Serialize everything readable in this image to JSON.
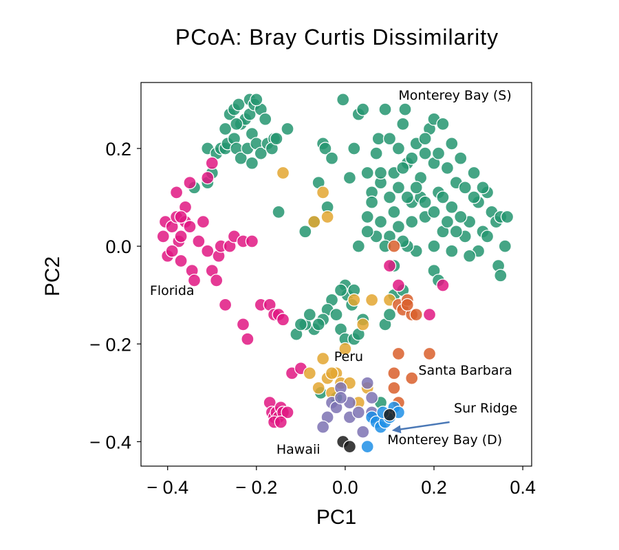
{
  "chart_data": {
    "type": "scatter",
    "title": "PCoA: Bray Curtis Dissimilarity",
    "xlabel": "PC1",
    "ylabel": "PC2",
    "xlim": [
      -0.46,
      0.42
    ],
    "ylim": [
      -0.45,
      0.335
    ],
    "xticks": [
      -0.4,
      -0.2,
      0.0,
      0.2,
      0.4
    ],
    "yticks": [
      -0.4,
      -0.2,
      0.0,
      0.2
    ],
    "xtick_labels": [
      "− 0.4",
      "− 0.2",
      "0.0",
      "0.2",
      "0.4"
    ],
    "ytick_labels": [
      "− 0.4",
      "− 0.2",
      "0.0",
      "0.2"
    ],
    "grid": false,
    "legend": "none",
    "annotations": [
      {
        "text": "Monterey Bay (S)",
        "x": 0.12,
        "y": 0.3
      },
      {
        "text": "Florida",
        "x": -0.44,
        "y": -0.1
      },
      {
        "text": "Peru",
        "x": -0.025,
        "y": -0.235
      },
      {
        "text": "Santa Barbara",
        "x": 0.165,
        "y": -0.263
      },
      {
        "text": "Sur Ridge",
        "x": 0.245,
        "y": -0.34
      },
      {
        "text": "Monterey Bay (D)",
        "x": 0.095,
        "y": -0.405
      },
      {
        "text": "Hawaii",
        "x": -0.155,
        "y": -0.425
      }
    ],
    "arrow": {
      "from": [
        0.235,
        -0.36
      ],
      "to": [
        0.105,
        -0.377
      ]
    },
    "series": [
      {
        "name": "Monterey Bay (S)",
        "color": "#259570",
        "points": [
          [
            -0.34,
            0.12
          ],
          [
            -0.31,
            0.13
          ],
          [
            -0.3,
            0.15
          ],
          [
            -0.31,
            0.2
          ],
          [
            -0.29,
            0.19
          ],
          [
            -0.28,
            0.2
          ],
          [
            -0.27,
            0.2
          ],
          [
            -0.265,
            0.21
          ],
          [
            -0.27,
            0.24
          ],
          [
            -0.26,
            0.27
          ],
          [
            -0.25,
            0.28
          ],
          [
            -0.24,
            0.29
          ],
          [
            -0.235,
            0.25
          ],
          [
            -0.225,
            0.26
          ],
          [
            -0.215,
            0.27
          ],
          [
            -0.25,
            0.22
          ],
          [
            -0.245,
            0.2
          ],
          [
            -0.235,
            0.18
          ],
          [
            -0.22,
            0.2
          ],
          [
            -0.21,
            0.23
          ],
          [
            -0.2,
            0.21
          ],
          [
            -0.19,
            0.19
          ],
          [
            -0.175,
            0.21
          ],
          [
            -0.16,
            0.22
          ],
          [
            -0.215,
            0.3
          ],
          [
            -0.205,
            0.29
          ],
          [
            -0.19,
            0.28
          ],
          [
            -0.18,
            0.26
          ],
          [
            -0.165,
            0.2
          ],
          [
            -0.155,
            0.22
          ],
          [
            -0.13,
            0.24
          ],
          [
            -0.21,
            0.17
          ],
          [
            -0.245,
            0.25
          ],
          [
            -0.2,
            0.3
          ],
          [
            -0.15,
            0.07
          ],
          [
            -0.09,
            0.03
          ],
          [
            -0.07,
            0.05
          ],
          [
            -0.04,
            0.08
          ],
          [
            -0.06,
            0.13
          ],
          [
            -0.05,
            0.21
          ],
          [
            -0.045,
            0.2
          ],
          [
            -0.03,
            0.18
          ],
          [
            -0.005,
            0.3
          ],
          [
            0.01,
            0.14
          ],
          [
            0.02,
            0.2
          ],
          [
            0.03,
            0.27
          ],
          [
            0.04,
            0.28
          ],
          [
            0.05,
            0.15
          ],
          [
            0.06,
            0.11
          ],
          [
            0.06,
            0.09
          ],
          [
            0.05,
            0.06
          ],
          [
            0.07,
            0.19
          ],
          [
            0.075,
            0.22
          ],
          [
            0.08,
            0.13
          ],
          [
            0.09,
            0.28
          ],
          [
            0.1,
            0.22
          ],
          [
            0.11,
            0.15
          ],
          [
            0.12,
            0.2
          ],
          [
            0.13,
            0.25
          ],
          [
            0.135,
            0.28
          ],
          [
            0.14,
            0.17
          ],
          [
            0.15,
            0.09
          ],
          [
            0.16,
            0.21
          ],
          [
            0.17,
            0.14
          ],
          [
            0.18,
            0.19
          ],
          [
            0.19,
            0.24
          ],
          [
            0.2,
            0.26
          ],
          [
            0.2,
            0.17
          ],
          [
            0.21,
            0.11
          ],
          [
            0.22,
            0.25
          ],
          [
            0.22,
            0.1
          ],
          [
            0.23,
            0.16
          ],
          [
            0.24,
            0.08
          ],
          [
            0.25,
            0.13
          ],
          [
            0.26,
            0.18
          ],
          [
            0.27,
            0.12
          ],
          [
            0.28,
            0.05
          ],
          [
            0.29,
            0.15
          ],
          [
            0.3,
            0.09
          ],
          [
            0.31,
            0.03
          ],
          [
            0.32,
            0.11
          ],
          [
            0.33,
            0.07
          ],
          [
            0.34,
            0.05
          ],
          [
            0.35,
            0.06
          ],
          [
            0.36,
            0.0
          ],
          [
            0.365,
            0.06
          ],
          [
            0.345,
            -0.04
          ],
          [
            0.35,
            -0.06
          ],
          [
            0.32,
            0.02
          ],
          [
            0.3,
            -0.01
          ],
          [
            0.28,
            -0.02
          ],
          [
            0.27,
            0.02
          ],
          [
            0.25,
            0.03
          ],
          [
            0.24,
            -0.01
          ],
          [
            0.22,
            0.03
          ],
          [
            0.2,
            0.0
          ],
          [
            0.18,
            0.06
          ],
          [
            0.17,
            0.1
          ],
          [
            0.16,
            -0.01
          ],
          [
            0.15,
            0.05
          ],
          [
            0.14,
            0.0
          ],
          [
            0.13,
            0.01
          ],
          [
            0.12,
            0.04
          ],
          [
            0.11,
            0.07
          ],
          [
            0.1,
            0.02
          ],
          [
            0.09,
            0.0
          ],
          [
            0.08,
            0.05
          ],
          [
            0.07,
            0.02
          ],
          [
            0.11,
            -0.04
          ],
          [
            0.2,
            -0.05
          ],
          [
            0.21,
            -0.07
          ],
          [
            0.03,
            0.0
          ],
          [
            0.05,
            0.03
          ],
          [
            0.12,
            0.12
          ],
          [
            0.14,
            0.1
          ],
          [
            0.16,
            0.12
          ],
          [
            0.18,
            0.09
          ],
          [
            0.2,
            0.07
          ],
          [
            0.23,
            0.05
          ],
          [
            0.26,
            0.06
          ],
          [
            0.29,
            0.1
          ],
          [
            0.31,
            0.12
          ],
          [
            0.1,
            0.1
          ],
          [
            0.08,
            0.15
          ],
          [
            0.13,
            0.16
          ],
          [
            0.15,
            0.18
          ],
          [
            0.18,
            0.22
          ],
          [
            0.21,
            0.19
          ],
          [
            0.24,
            0.21
          ],
          [
            0.0,
            -0.08
          ],
          [
            0.005,
            -0.1
          ],
          [
            0.015,
            -0.12
          ],
          [
            0.02,
            -0.09
          ],
          [
            -0.01,
            -0.09
          ],
          [
            -0.03,
            -0.11
          ],
          [
            -0.04,
            -0.13
          ],
          [
            -0.05,
            -0.15
          ],
          [
            -0.07,
            -0.17
          ],
          [
            -0.09,
            -0.16
          ],
          [
            -0.11,
            -0.18
          ],
          [
            -0.1,
            -0.16
          ],
          [
            -0.02,
            -0.14
          ],
          [
            -0.01,
            -0.17
          ],
          [
            0.0,
            -0.19
          ],
          [
            0.02,
            -0.19
          ],
          [
            0.03,
            -0.18
          ],
          [
            0.04,
            -0.15
          ],
          [
            -0.055,
            -0.3
          ],
          [
            -0.02,
            -0.31
          ],
          [
            0.08,
            -0.32
          ],
          [
            0.09,
            -0.16
          ],
          [
            0.1,
            -0.14
          ],
          [
            0.11,
            -0.1
          ],
          [
            0.13,
            -0.09
          ],
          [
            -0.06,
            -0.16
          ],
          [
            -0.08,
            -0.14
          ]
        ]
      },
      {
        "name": "Florida",
        "color": "#e01783",
        "points": [
          [
            -0.41,
            0.02
          ],
          [
            -0.4,
            -0.02
          ],
          [
            -0.405,
            0.05
          ],
          [
            -0.39,
            0.04
          ],
          [
            -0.38,
            0.06
          ],
          [
            -0.375,
            0.01
          ],
          [
            -0.37,
            0.02
          ],
          [
            -0.37,
            -0.03
          ],
          [
            -0.36,
            0.05
          ],
          [
            -0.35,
            0.04
          ],
          [
            -0.36,
            0.08
          ],
          [
            -0.345,
            -0.05
          ],
          [
            -0.34,
            -0.07
          ],
          [
            -0.33,
            0.01
          ],
          [
            -0.32,
            0.05
          ],
          [
            -0.31,
            -0.01
          ],
          [
            -0.3,
            -0.05
          ],
          [
            -0.29,
            -0.07
          ],
          [
            -0.285,
            -0.02
          ],
          [
            -0.28,
            0.0
          ],
          [
            -0.26,
            0.0
          ],
          [
            -0.25,
            0.02
          ],
          [
            -0.23,
            0.01
          ],
          [
            -0.21,
            0.01
          ],
          [
            -0.38,
            0.11
          ],
          [
            -0.35,
            0.13
          ],
          [
            -0.3,
            0.17
          ],
          [
            -0.31,
            0.14
          ],
          [
            -0.27,
            -0.12
          ],
          [
            -0.23,
            -0.16
          ],
          [
            -0.22,
            -0.19
          ],
          [
            -0.19,
            -0.12
          ],
          [
            -0.17,
            -0.12
          ],
          [
            -0.16,
            -0.14
          ],
          [
            -0.15,
            -0.14
          ],
          [
            -0.14,
            -0.15
          ],
          [
            -0.12,
            -0.26
          ],
          [
            -0.1,
            -0.25
          ],
          [
            -0.17,
            -0.32
          ],
          [
            -0.165,
            -0.34
          ],
          [
            -0.16,
            -0.35
          ],
          [
            -0.155,
            -0.34
          ],
          [
            -0.15,
            -0.35
          ],
          [
            -0.145,
            -0.33
          ],
          [
            -0.14,
            -0.34
          ],
          [
            -0.13,
            -0.34
          ],
          [
            -0.16,
            -0.36
          ],
          [
            -0.145,
            -0.36
          ],
          [
            0.1,
            -0.04
          ],
          [
            0.12,
            -0.08
          ],
          [
            0.19,
            -0.14
          ],
          [
            0.22,
            -0.08
          ],
          [
            -0.39,
            -0.01
          ],
          [
            -0.37,
            0.06
          ]
        ]
      },
      {
        "name": "Peru",
        "color": "#e3a630",
        "points": [
          [
            -0.14,
            0.15
          ],
          [
            -0.05,
            0.11
          ],
          [
            -0.07,
            0.05
          ],
          [
            -0.04,
            0.06
          ],
          [
            0.02,
            -0.11
          ],
          [
            0.06,
            -0.11
          ],
          [
            0.1,
            -0.11
          ],
          [
            0.04,
            -0.16
          ],
          [
            -0.05,
            -0.23
          ],
          [
            -0.04,
            -0.27
          ],
          [
            -0.08,
            -0.26
          ],
          [
            -0.06,
            -0.29
          ],
          [
            -0.03,
            -0.3
          ],
          [
            -0.02,
            -0.26
          ],
          [
            -0.01,
            -0.28
          ],
          [
            0.01,
            -0.28
          ],
          [
            0.0,
            -0.21
          ],
          [
            0.03,
            -0.32
          ],
          [
            0.05,
            -0.29
          ],
          [
            -0.03,
            -0.26
          ]
        ]
      },
      {
        "name": "Santa Barbara",
        "color": "#d95f2b",
        "points": [
          [
            0.11,
            0.0
          ],
          [
            0.12,
            -0.12
          ],
          [
            0.13,
            -0.13
          ],
          [
            0.14,
            -0.11
          ],
          [
            0.15,
            -0.14
          ],
          [
            0.16,
            -0.14
          ],
          [
            0.12,
            -0.22
          ],
          [
            0.11,
            -0.26
          ],
          [
            0.11,
            -0.29
          ],
          [
            0.12,
            -0.32
          ],
          [
            0.15,
            -0.27
          ],
          [
            0.19,
            -0.22
          ],
          [
            0.14,
            -0.12
          ]
        ]
      },
      {
        "name": "Hawaii",
        "color": "#7d72b3",
        "points": [
          [
            -0.01,
            -0.29
          ],
          [
            -0.03,
            -0.32
          ],
          [
            -0.04,
            -0.35
          ],
          [
            -0.05,
            -0.37
          ],
          [
            0.01,
            -0.32
          ],
          [
            0.05,
            -0.28
          ],
          [
            0.06,
            -0.31
          ],
          [
            0.065,
            -0.35
          ],
          [
            0.04,
            -0.38
          ],
          [
            0.01,
            -0.35
          ],
          [
            -0.02,
            -0.33
          ],
          [
            0.03,
            -0.34
          ],
          [
            0.06,
            -0.34
          ],
          [
            -0.01,
            -0.31
          ]
        ]
      },
      {
        "name": "Monterey Bay (D)",
        "color": "#1e8fe6",
        "points": [
          [
            0.06,
            -0.35
          ],
          [
            0.07,
            -0.36
          ],
          [
            0.08,
            -0.37
          ],
          [
            0.09,
            -0.36
          ],
          [
            0.1,
            -0.35
          ],
          [
            0.11,
            -0.33
          ],
          [
            0.12,
            -0.34
          ],
          [
            0.05,
            -0.41
          ],
          [
            0.085,
            -0.34
          ]
        ]
      },
      {
        "name": "Sur Ridge",
        "color": "#1c1c1c",
        "points": [
          [
            -0.005,
            -0.4
          ],
          [
            0.01,
            -0.41
          ],
          [
            0.1,
            -0.345
          ]
        ]
      }
    ]
  }
}
